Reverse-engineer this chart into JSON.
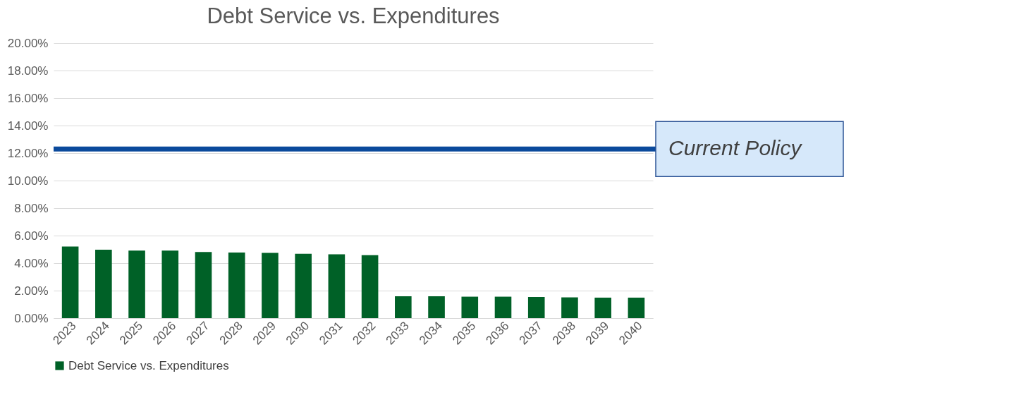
{
  "chart_data": {
    "type": "bar",
    "title": "Debt Service vs. Expenditures",
    "categories": [
      "2023",
      "2024",
      "2025",
      "2026",
      "2027",
      "2028",
      "2029",
      "2030",
      "2031",
      "2032",
      "2033",
      "2034",
      "2035",
      "2036",
      "2037",
      "2038",
      "2039",
      "2040"
    ],
    "series": [
      {
        "name": "Debt Service vs. Expenditures",
        "color": "#006127",
        "values": [
          5.21,
          4.98,
          4.91,
          4.91,
          4.81,
          4.77,
          4.74,
          4.68,
          4.64,
          4.58,
          1.59,
          1.59,
          1.56,
          1.56,
          1.54,
          1.51,
          1.49,
          1.49
        ]
      }
    ],
    "ylim": [
      0,
      20
    ],
    "yticks": [
      {
        "value": 0,
        "label": "0.00%"
      },
      {
        "value": 2,
        "label": "2.00%"
      },
      {
        "value": 4,
        "label": "4.00%"
      },
      {
        "value": 6,
        "label": "6.00%"
      },
      {
        "value": 8,
        "label": "8.00%"
      },
      {
        "value": 10,
        "label": "10.00%"
      },
      {
        "value": 12,
        "label": "12.00%"
      },
      {
        "value": 14,
        "label": "14.00%"
      },
      {
        "value": 16,
        "label": "16.00%"
      },
      {
        "value": 18,
        "label": "18.00%"
      },
      {
        "value": 20,
        "label": "20.00%"
      }
    ],
    "ref_lines": [
      {
        "axis": "y",
        "value": 12.3,
        "label": "Current Policy",
        "color": "#0b4a9c"
      }
    ],
    "grid": "y",
    "legend": "bottom"
  }
}
